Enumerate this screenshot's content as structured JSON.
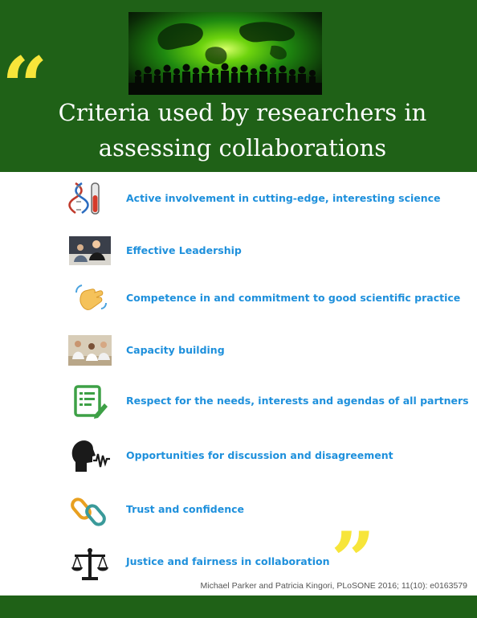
{
  "header": {
    "title_line1": "Criteria used by researchers in",
    "title_line2": "assessing collaborations",
    "open_quote": "“",
    "hero_image": "crowd-silhouette-over-green-globe"
  },
  "criteria": [
    {
      "label": "Active involvement in cutting-edge, interesting science",
      "icon": "dna-test-tube-icon"
    },
    {
      "label": "Effective Leadership",
      "icon": "leadership-photo"
    },
    {
      "label": "Competence in and commitment to good scientific practice",
      "icon": "waving-hand-icon"
    },
    {
      "label": "Capacity building",
      "icon": "lab-scientists-photo"
    },
    {
      "label": "Respect for the needs, interests and agendas of all partners",
      "icon": "document-pencil-icon"
    },
    {
      "label": "Opportunities for discussion and disagreement",
      "icon": "speaking-head-icon"
    },
    {
      "label": "Trust and confidence",
      "icon": "chain-link-icon"
    },
    {
      "label": "Justice and fairness in collaboration",
      "icon": "scales-icon"
    }
  ],
  "close_quote": "”",
  "citation": "Michael Parker and Patricia Kingori, PLoSONE 2016; 11(10): e0163579",
  "colors": {
    "header_green": "#1f6117",
    "accent_yellow": "#f7e53a",
    "label_blue": "#1e90dc"
  }
}
